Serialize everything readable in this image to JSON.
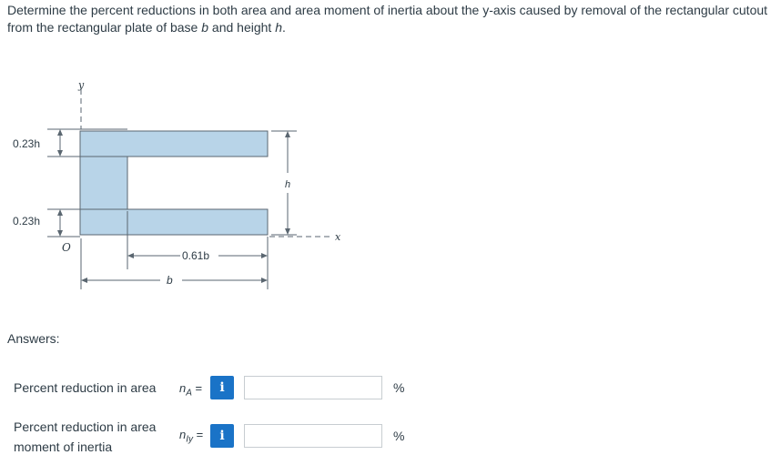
{
  "problem": {
    "part1": "Determine the percent reductions in both area and area moment of inertia about the y-axis caused by removal of the rectangular cutout from the rectangular plate of base ",
    "b": "b",
    "part2": " and height ",
    "h": "h",
    "part3": "."
  },
  "figure": {
    "label_y": "y",
    "label_dim_top": "0.23h",
    "label_dim_bottom": "0.23h",
    "label_h": "h",
    "label_x": "x",
    "label_origin": "O",
    "label_061b": "0.61b",
    "label_b": "b"
  },
  "answers": {
    "label": "Answers:",
    "row1": {
      "label": "Percent reduction in area",
      "symbol": "n",
      "subscript": "A",
      "equals": "=",
      "value": "",
      "unit": "%",
      "info_icon_glyph": "i"
    },
    "row2": {
      "label_line1": "Percent reduction in area",
      "label_line2": "moment of inertia",
      "symbol": "n",
      "subscript": "Iy",
      "equals": "=",
      "value": "",
      "unit": "%",
      "info_icon_glyph": "i"
    }
  },
  "colors": {
    "plate_fill": "#b8d4e8",
    "info_button": "#1a73c7"
  }
}
